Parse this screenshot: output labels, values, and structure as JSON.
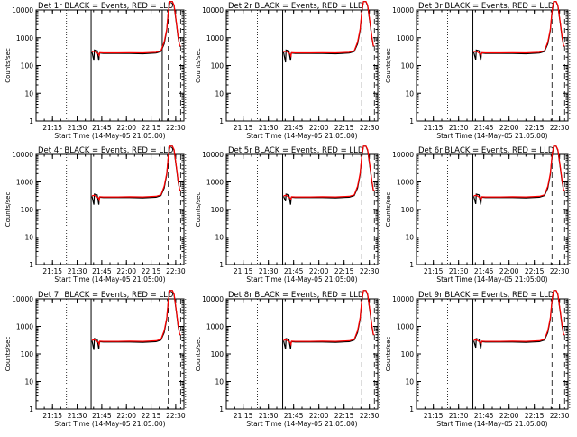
{
  "chart_data": [
    {
      "type": "line",
      "title": "Det 1r BLACK = Events, RED = LLD",
      "xlabel": "Start Time (14-May-05 21:05:00)",
      "ylabel": "Counts/sec",
      "y_scale": "log",
      "ylim": [
        1,
        10000
      ],
      "x_ticks": [
        "21:15",
        "21:30",
        "21:45",
        "22:00",
        "22:15",
        "22:30"
      ],
      "y_ticks": [
        "1",
        "10",
        "100",
        "1000",
        "10000"
      ],
      "events_dip": 150,
      "lld_dip": 230,
      "series": [
        {
          "color": "#000000"
        },
        {
          "color": "#ff0000"
        }
      ]
    },
    {
      "type": "line",
      "title": "Det 2r BLACK = Events, RED = LLD",
      "xlabel": "Start Time (14-May-05 21:05:00)",
      "ylabel": "Counts/sec",
      "y_scale": "log",
      "ylim": [
        1,
        10000
      ],
      "x_ticks": [
        "21:15",
        "21:30",
        "21:45",
        "22:00",
        "22:15",
        "22:30"
      ],
      "y_ticks": [
        "1",
        "10",
        "100",
        "1000",
        "10000"
      ],
      "events_dip": 130,
      "lld_dip": 220,
      "series": [
        {
          "color": "#000000"
        },
        {
          "color": "#ff0000"
        }
      ]
    },
    {
      "type": "line",
      "title": "Det 3r BLACK = Events, RED = LLD",
      "xlabel": "Start Time (14-May-05 21:05:00)",
      "ylabel": "Counts/sec",
      "y_scale": "log",
      "ylim": [
        1,
        10000
      ],
      "x_ticks": [
        "21:15",
        "21:30",
        "21:45",
        "22:00",
        "22:15",
        "22:30"
      ],
      "y_ticks": [
        "1",
        "10",
        "100",
        "1000",
        "10000"
      ],
      "events_dip": 160,
      "lld_dip": 230,
      "series": [
        {
          "color": "#000000"
        },
        {
          "color": "#ff0000"
        }
      ]
    },
    {
      "type": "line",
      "title": "Det 4r BLACK = Events, RED = LLD",
      "xlabel": "Start Time (14-May-05 21:05:00)",
      "ylabel": "Counts/sec",
      "y_scale": "log",
      "ylim": [
        1,
        10000
      ],
      "x_ticks": [
        "21:15",
        "21:30",
        "21:45",
        "22:00",
        "22:15",
        "22:30"
      ],
      "y_ticks": [
        "1",
        "10",
        "100",
        "1000",
        "10000"
      ],
      "events_dip": 150,
      "lld_dip": 220,
      "series": [
        {
          "color": "#000000"
        },
        {
          "color": "#ff0000"
        }
      ]
    },
    {
      "type": "line",
      "title": "Det 5r BLACK = Events, RED = LLD",
      "xlabel": "Start Time (14-May-05 21:05:00)",
      "ylabel": "Counts/sec",
      "y_scale": "log",
      "ylim": [
        1,
        10000
      ],
      "x_ticks": [
        "21:15",
        "21:30",
        "21:45",
        "22:00",
        "22:15",
        "22:30"
      ],
      "y_ticks": [
        "1",
        "10",
        "100",
        "1000",
        "10000"
      ],
      "events_dip": 200,
      "lld_dip": 240,
      "series": [
        {
          "color": "#000000"
        },
        {
          "color": "#ff0000"
        }
      ]
    },
    {
      "type": "line",
      "title": "Det 6r BLACK = Events, RED = LLD",
      "xlabel": "Start Time (14-May-05 21:05:00)",
      "ylabel": "Counts/sec",
      "y_scale": "log",
      "ylim": [
        1,
        10000
      ],
      "x_ticks": [
        "21:15",
        "21:30",
        "21:45",
        "22:00",
        "22:15",
        "22:30"
      ],
      "y_ticks": [
        "1",
        "10",
        "100",
        "1000",
        "10000"
      ],
      "events_dip": 160,
      "lld_dip": 220,
      "series": [
        {
          "color": "#000000"
        },
        {
          "color": "#ff0000"
        }
      ]
    },
    {
      "type": "line",
      "title": "Det 7r BLACK = Events, RED = LLD",
      "xlabel": "Start Time (14-May-05 21:05:00)",
      "ylabel": "Counts/sec",
      "y_scale": "log",
      "ylim": [
        1,
        10000
      ],
      "x_ticks": [
        "21:15",
        "21:30",
        "21:45",
        "22:00",
        "22:15",
        "22:30"
      ],
      "y_ticks": [
        "1",
        "10",
        "100",
        "1000",
        "10000"
      ],
      "events_dip": 140,
      "lld_dip": 220,
      "series": [
        {
          "color": "#000000"
        },
        {
          "color": "#ff0000"
        }
      ]
    },
    {
      "type": "line",
      "title": "Det 8r BLACK = Events, RED = LLD",
      "xlabel": "Start Time (14-May-05 21:05:00)",
      "ylabel": "Counts/sec",
      "y_scale": "log",
      "ylim": [
        1,
        10000
      ],
      "x_ticks": [
        "21:15",
        "21:30",
        "21:45",
        "22:00",
        "22:15",
        "22:30"
      ],
      "y_ticks": [
        "1",
        "10",
        "100",
        "1000",
        "10000"
      ],
      "events_dip": 150,
      "lld_dip": 220,
      "series": [
        {
          "color": "#000000"
        },
        {
          "color": "#ff0000"
        }
      ]
    },
    {
      "type": "line",
      "title": "Det 9r BLACK = Events, RED = LLD",
      "xlabel": "Start Time (14-May-05 21:05:00)",
      "ylabel": "Counts/sec",
      "y_scale": "log",
      "ylim": [
        1,
        10000
      ],
      "x_ticks": [
        "21:15",
        "21:30",
        "21:45",
        "22:00",
        "22:15",
        "22:30"
      ],
      "y_ticks": [
        "1",
        "10",
        "100",
        "1000",
        "10000"
      ],
      "events_dip": 170,
      "lld_dip": 230,
      "series": [
        {
          "color": "#000000"
        },
        {
          "color": "#ff0000"
        }
      ]
    }
  ]
}
